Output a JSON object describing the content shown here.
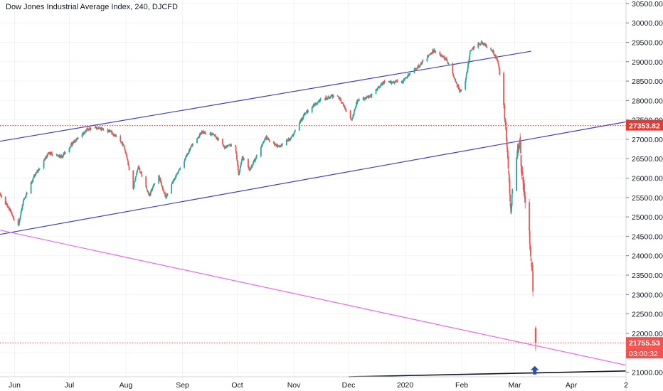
{
  "chart_data": {
    "type": "candlestick",
    "title": "Dow Jones Industrial Average Index, 240, DJCFD",
    "y_axis": {
      "ticks": [
        21000,
        21500,
        22000,
        22500,
        23000,
        23500,
        24000,
        24500,
        25000,
        25500,
        26000,
        26500,
        27000,
        27500,
        28000,
        28500,
        29000,
        29500,
        30000,
        30500
      ],
      "tick_labels": [
        "21000.00",
        "21500.00",
        "22000.00",
        "22500.00",
        "23000.00",
        "23500.00",
        "24000.00",
        "24500.00",
        "25000.00",
        "25500.00",
        "26000.00",
        "26500.00",
        "27000.00",
        "27500.00",
        "28000.00",
        "28500.00",
        "29000.00",
        "29500.00",
        "30000.00",
        "30500.00"
      ],
      "ylim": [
        20880,
        30590
      ]
    },
    "x_axis": {
      "tick_labels": [
        "Jun",
        "Jul",
        "Aug",
        "Sep",
        "Oct",
        "Nov",
        "Dec",
        "2020",
        "Feb",
        "Mar",
        "Apr",
        "2"
      ],
      "tick_dates": [
        "2019-06-01",
        "2019-07-01",
        "2019-08-01",
        "2019-09-01",
        "2019-10-01",
        "2019-11-01",
        "2019-12-01",
        "2020-01-01",
        "2020-02-01",
        "2020-03-01",
        "2020-04-01",
        "2020-05-01"
      ],
      "xlim": [
        "2019-05-24",
        "2020-05-01"
      ]
    },
    "price_labels": [
      {
        "value": 27353.82,
        "text": "27353.82",
        "color": "#e53935"
      },
      {
        "value": 21755.53,
        "text": "21755.53",
        "color": "#ef5350"
      }
    ],
    "countdown_label": "03:00:32",
    "horizontal_lines": [
      {
        "value": 27353.82,
        "color": "#e53935",
        "style": "dotted"
      },
      {
        "value": 21755.53,
        "color": "#ef5350",
        "style": "dotted"
      }
    ],
    "trendlines": [
      {
        "name": "upper channel",
        "color": "#3f3fc8",
        "from": [
          "2019-05-24",
          26950
        ],
        "to": [
          "2020-03-10",
          29270
        ]
      },
      {
        "name": "lower channel",
        "color": "#3f3fc8",
        "from": [
          "2019-05-24",
          24550
        ],
        "to": [
          "2020-05-01",
          27450
        ]
      },
      {
        "name": "descending support",
        "color": "#ee66ee",
        "from": [
          "2019-05-24",
          24660
        ],
        "to": [
          "2020-05-01",
          21180
        ]
      },
      {
        "name": "long-term support",
        "color": "#131722",
        "from": [
          "2019-12-01",
          20880
        ],
        "to": [
          "2020-05-01",
          21030
        ]
      }
    ],
    "marker": {
      "shape": "arrow-up",
      "date": "2020-03-12",
      "value": 21160,
      "color": "#2f4fa3"
    },
    "colors": {
      "up": "#26a69a",
      "down": "#ef5350",
      "grid": "#f0f3fa"
    },
    "grid": true,
    "anchors": [
      [
        "2019-05-24",
        25600
      ],
      [
        "2019-05-30",
        25150
      ],
      [
        "2019-06-03",
        24700
      ],
      [
        "2019-06-06",
        25400
      ],
      [
        "2019-06-12",
        26050
      ],
      [
        "2019-06-20",
        26650
      ],
      [
        "2019-06-27",
        26550
      ],
      [
        "2019-07-03",
        26900
      ],
      [
        "2019-07-11",
        27250
      ],
      [
        "2019-07-16",
        27300
      ],
      [
        "2019-07-24",
        27200
      ],
      [
        "2019-07-31",
        26850
      ],
      [
        "2019-08-02",
        26500
      ],
      [
        "2019-08-05",
        25700
      ],
      [
        "2019-08-08",
        26300
      ],
      [
        "2019-08-14",
        25550
      ],
      [
        "2019-08-19",
        26100
      ],
      [
        "2019-08-23",
        25500
      ],
      [
        "2019-08-28",
        26000
      ],
      [
        "2019-09-06",
        26800
      ],
      [
        "2019-09-12",
        27200
      ],
      [
        "2019-09-19",
        27100
      ],
      [
        "2019-09-24",
        26800
      ],
      [
        "2019-09-30",
        26900
      ],
      [
        "2019-10-02",
        26100
      ],
      [
        "2019-10-04",
        26550
      ],
      [
        "2019-10-08",
        26200
      ],
      [
        "2019-10-17",
        27050
      ],
      [
        "2019-10-24",
        26800
      ],
      [
        "2019-10-31",
        27050
      ],
      [
        "2019-11-07",
        27650
      ],
      [
        "2019-11-15",
        28000
      ],
      [
        "2019-11-25",
        28150
      ],
      [
        "2019-12-03",
        27500
      ],
      [
        "2019-12-06",
        28000
      ],
      [
        "2019-12-13",
        28100
      ],
      [
        "2019-12-20",
        28450
      ],
      [
        "2019-12-31",
        28500
      ],
      [
        "2020-01-03",
        28650
      ],
      [
        "2020-01-09",
        28900
      ],
      [
        "2020-01-17",
        29300
      ],
      [
        "2020-01-24",
        29050
      ],
      [
        "2020-01-31",
        28250
      ],
      [
        "2020-02-03",
        28400
      ],
      [
        "2020-02-06",
        29300
      ],
      [
        "2020-02-12",
        29500
      ],
      [
        "2020-02-18",
        29300
      ],
      [
        "2020-02-21",
        29000
      ],
      [
        "2020-02-24",
        28100
      ],
      [
        "2020-02-25",
        27500
      ],
      [
        "2020-02-27",
        26100
      ],
      [
        "2020-02-28",
        25100
      ],
      [
        "2020-03-02",
        26600
      ],
      [
        "2020-03-04",
        27000
      ],
      [
        "2020-03-05",
        26200
      ],
      [
        "2020-03-06",
        25800
      ],
      [
        "2020-03-09",
        24700
      ],
      [
        "2020-03-10",
        24000
      ],
      [
        "2020-03-11",
        23600
      ],
      [
        "2020-03-12",
        21756
      ]
    ]
  }
}
